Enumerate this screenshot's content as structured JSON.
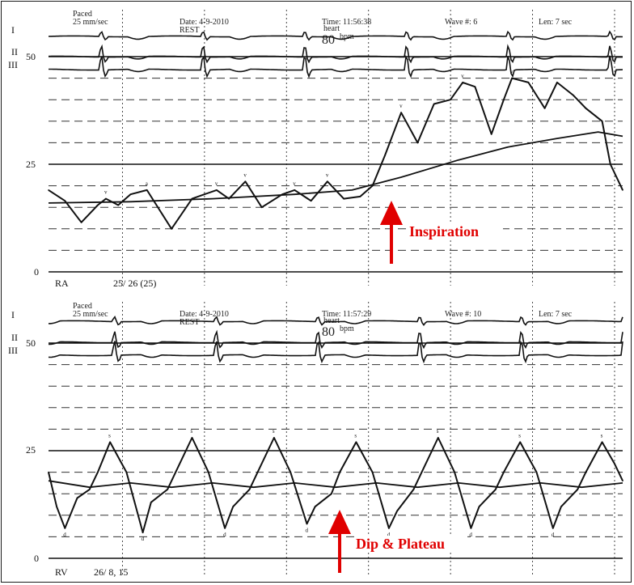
{
  "chart_data": [
    {
      "type": "line",
      "header": {
        "paced": "Paced",
        "speed": "25 mm/sec",
        "date": "Date: 4-9-2010",
        "rest": "REST",
        "time": "Time: 11:56:38",
        "hr_label": "heart",
        "hr_value": "80",
        "hr_unit": "bpm",
        "wave": "Wave #: 6",
        "len": "Len: 7 sec"
      },
      "leads": [
        "I",
        "II",
        "III"
      ],
      "scale_labels": [
        "50",
        "25",
        "0"
      ],
      "ylim": [
        0,
        50
      ],
      "series": [
        {
          "name": "RA",
          "x": [
            0,
            0.2,
            0.4,
            0.6,
            0.7,
            0.85,
            1.0,
            1.2,
            1.5,
            1.75,
            1.9,
            2.05,
            2.2,
            2.4,
            2.6,
            2.85,
            3.0,
            3.2,
            3.4,
            3.6,
            3.8,
            3.95,
            4.1,
            4.3,
            4.5,
            4.7,
            4.9,
            5.05,
            5.2,
            5.4,
            5.55,
            5.65,
            5.85,
            6.05,
            6.2,
            6.4,
            6.55,
            6.75,
            6.85,
            7.0
          ],
          "y": [
            19,
            16.5,
            11.5,
            15.5,
            17,
            15.5,
            18,
            19,
            10,
            17,
            18,
            19,
            17,
            21,
            15,
            18,
            19,
            16.5,
            21,
            17,
            17.5,
            20,
            27,
            37,
            30,
            39,
            40,
            44,
            43,
            32,
            40,
            45,
            44,
            38,
            44,
            41,
            38,
            35,
            25,
            19
          ]
        },
        {
          "name": "RA trend",
          "x": [
            0,
            1,
            2,
            3,
            3.7,
            4.3,
            5,
            5.6,
            6.2,
            6.7,
            7.0
          ],
          "y": [
            16,
            16.3,
            17,
            18,
            19,
            22,
            26,
            29,
            31,
            32.5,
            31.5
          ]
        }
      ],
      "annotation": "Inspiration",
      "footer": {
        "channel": "RA",
        "pressures": "25/ 26 (25)"
      },
      "peak_labels": [
        "v",
        "a",
        "v",
        "v",
        "v",
        "v",
        "v",
        "v",
        "v"
      ]
    },
    {
      "type": "line",
      "header": {
        "paced": "Paced",
        "speed": "25 mm/sec",
        "date": "Date: 4-9-2010",
        "rest": "REST",
        "time": "Time: 11:57:29",
        "hr_label": "heart",
        "hr_value": "80",
        "hr_unit": "bpm",
        "wave": "Wave #: 10",
        "len": "Len: 7 sec"
      },
      "leads": [
        "I",
        "II",
        "III"
      ],
      "scale_labels": [
        "50",
        "25",
        "0"
      ],
      "ylim": [
        0,
        50
      ],
      "series": [
        {
          "name": "RV",
          "x": [
            0,
            0.1,
            0.2,
            0.35,
            0.5,
            0.6,
            0.75,
            0.95,
            1.15,
            1.25,
            1.45,
            1.55,
            1.75,
            1.95,
            2.15,
            2.25,
            2.45,
            2.55,
            2.75,
            2.95,
            3.15,
            3.25,
            3.45,
            3.55,
            3.75,
            3.95,
            4.15,
            4.25,
            4.45,
            4.55,
            4.75,
            4.95,
            5.15,
            5.25,
            5.45,
            5.55,
            5.75,
            5.95,
            6.15,
            6.25,
            6.45,
            6.55,
            6.75,
            6.9,
            7.0
          ],
          "y": [
            20,
            12,
            7,
            14,
            16,
            20,
            27,
            20,
            6,
            13,
            16,
            20,
            28,
            20,
            7,
            12,
            16,
            20,
            28,
            20,
            8,
            12,
            15,
            20,
            27,
            20,
            7,
            11,
            16,
            20,
            28,
            20,
            7,
            12,
            16,
            20,
            27,
            20,
            7,
            12,
            16,
            20,
            27,
            22,
            18
          ]
        },
        {
          "name": "RV trend",
          "x": [
            0,
            0.5,
            1,
            1.5,
            2,
            2.5,
            3,
            3.5,
            4,
            4.5,
            5,
            5.5,
            6,
            6.5,
            7.0
          ],
          "y": [
            18,
            16.5,
            17.5,
            16.5,
            17.5,
            16.5,
            17.5,
            16.5,
            17.5,
            16.5,
            17.5,
            16.5,
            17.5,
            16.5,
            17.5
          ]
        }
      ],
      "annotation": "Dip & Plateau",
      "footer": {
        "channel": "RV",
        "pressures": "26/ 8, 15"
      },
      "peak_labels": [
        "s",
        "s",
        "s",
        "s",
        "s",
        "s",
        "s",
        "d",
        "d",
        "d",
        "d",
        "d",
        "d",
        "d"
      ]
    }
  ]
}
